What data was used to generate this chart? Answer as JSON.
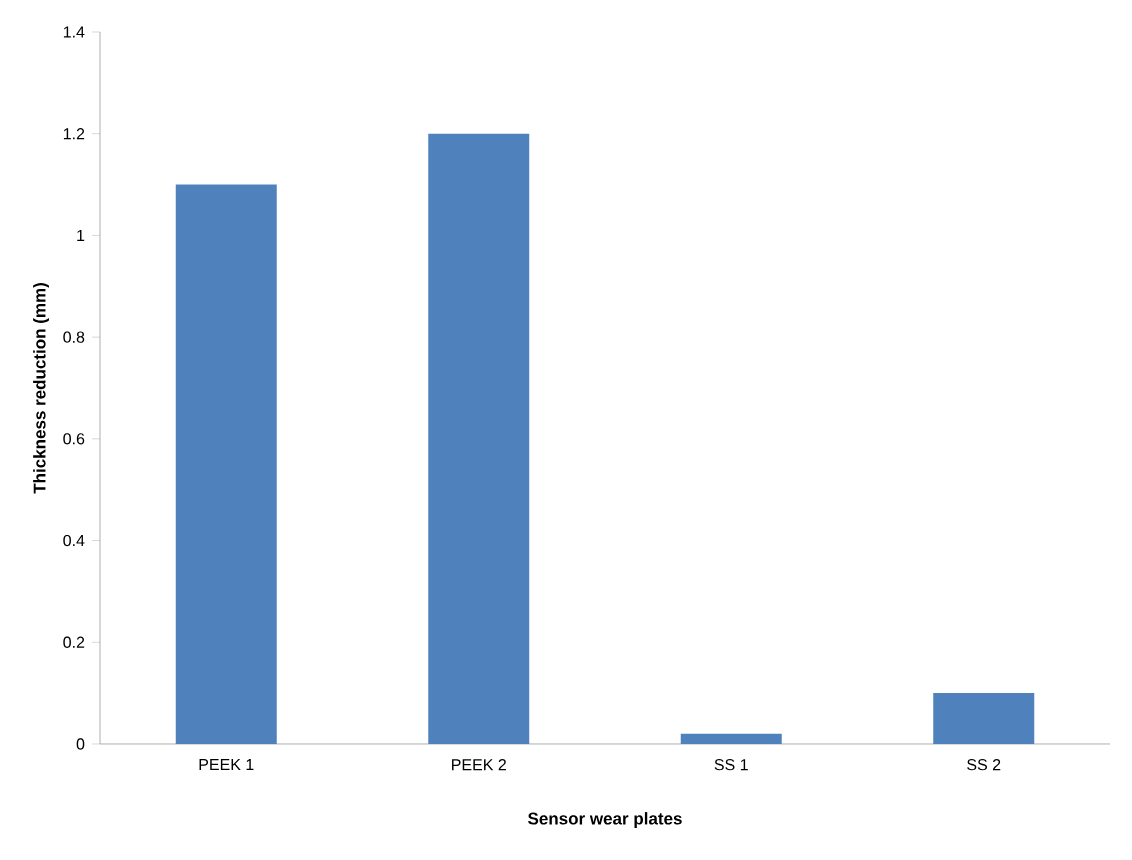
{
  "chart_data": {
    "type": "bar",
    "xlabel": "Sensor wear plates",
    "ylabel": "Thickness reduction (mm)",
    "categories": [
      "PEEK 1",
      "PEEK 2",
      "SS 1",
      "SS 2"
    ],
    "values": [
      1.1,
      1.2,
      0.02,
      0.1
    ],
    "color": "#4f81bd",
    "ylim": [
      0,
      1.4
    ],
    "yticks": [
      0,
      0.2,
      0.4,
      0.6,
      0.8,
      1,
      1.2,
      1.4
    ]
  }
}
